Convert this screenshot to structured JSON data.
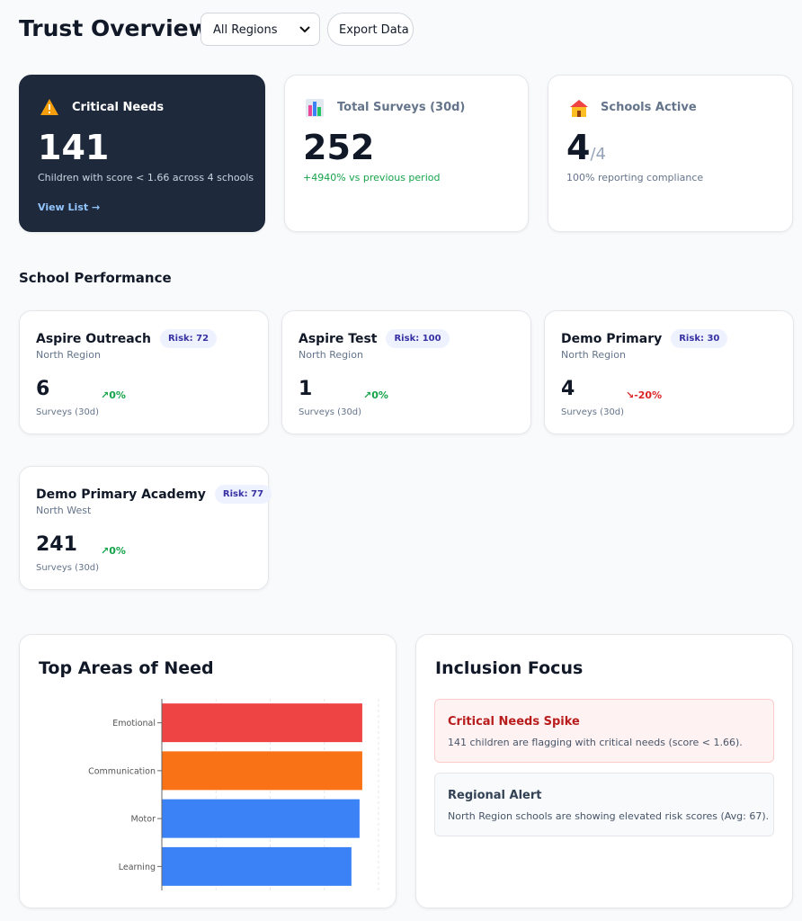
{
  "header": {
    "title": "Trust Overview",
    "region_filter": "All Regions",
    "export_button": "Export Data"
  },
  "stats": [
    {
      "label": "Critical Needs",
      "value": "141",
      "description": "Children with score < 1.66 across 4 schools",
      "link": "View List →"
    },
    {
      "label": "Total Surveys (30d)",
      "value": "252",
      "change": "+4940% vs previous period"
    },
    {
      "label": "Schools Active",
      "value": "4",
      "total": "/4",
      "description": "100% reporting compliance"
    }
  ],
  "performance": {
    "title": "School Performance",
    "schools": [
      {
        "name": "Aspire Outreach",
        "region": "North Region",
        "risk": "Risk: 72",
        "surveys": "6",
        "trend": "↗0%",
        "trend_color": "#16a34a",
        "surveys_label": "Surveys (30d)"
      },
      {
        "name": "Aspire Test",
        "region": "North Region",
        "risk": "Risk: 100",
        "surveys": "1",
        "trend": "↗0%",
        "trend_color": "#16a34a",
        "surveys_label": "Surveys (30d)"
      },
      {
        "name": "Demo Primary",
        "region": "North Region",
        "risk": "Risk: 30",
        "surveys": "4",
        "trend": "↘-20%",
        "trend_color": "#dc2626",
        "surveys_label": "Surveys (30d)"
      },
      {
        "name": "Demo Primary Academy",
        "region": "North West",
        "risk": "Risk: 77",
        "surveys": "241",
        "trend": "↗0%",
        "trend_color": "#16a34a",
        "surveys_label": "Surveys (30d)"
      }
    ]
  },
  "chart_data": {
    "type": "bar",
    "orientation": "horizontal",
    "title": "Top Areas of Need",
    "categories": [
      "Emotional",
      "Communication",
      "Motor",
      "Learning"
    ],
    "values": [
      3.7,
      3.7,
      3.65,
      3.5
    ],
    "colors": [
      "#ef4444",
      "#f97316",
      "#3b82f6",
      "#3b82f6"
    ],
    "xlim": [
      0,
      4
    ],
    "xticks": [
      0,
      1,
      2,
      3,
      4
    ],
    "grid": true
  },
  "inclusion": {
    "title": "Inclusion Focus",
    "alerts": [
      {
        "title": "Critical Needs Spike",
        "message": "141 children are flagging with critical needs (score < 1.66).",
        "level": "critical"
      },
      {
        "title": "Regional Alert",
        "message": "North Region schools are showing elevated risk scores (Avg: 67).",
        "level": "info"
      }
    ]
  }
}
